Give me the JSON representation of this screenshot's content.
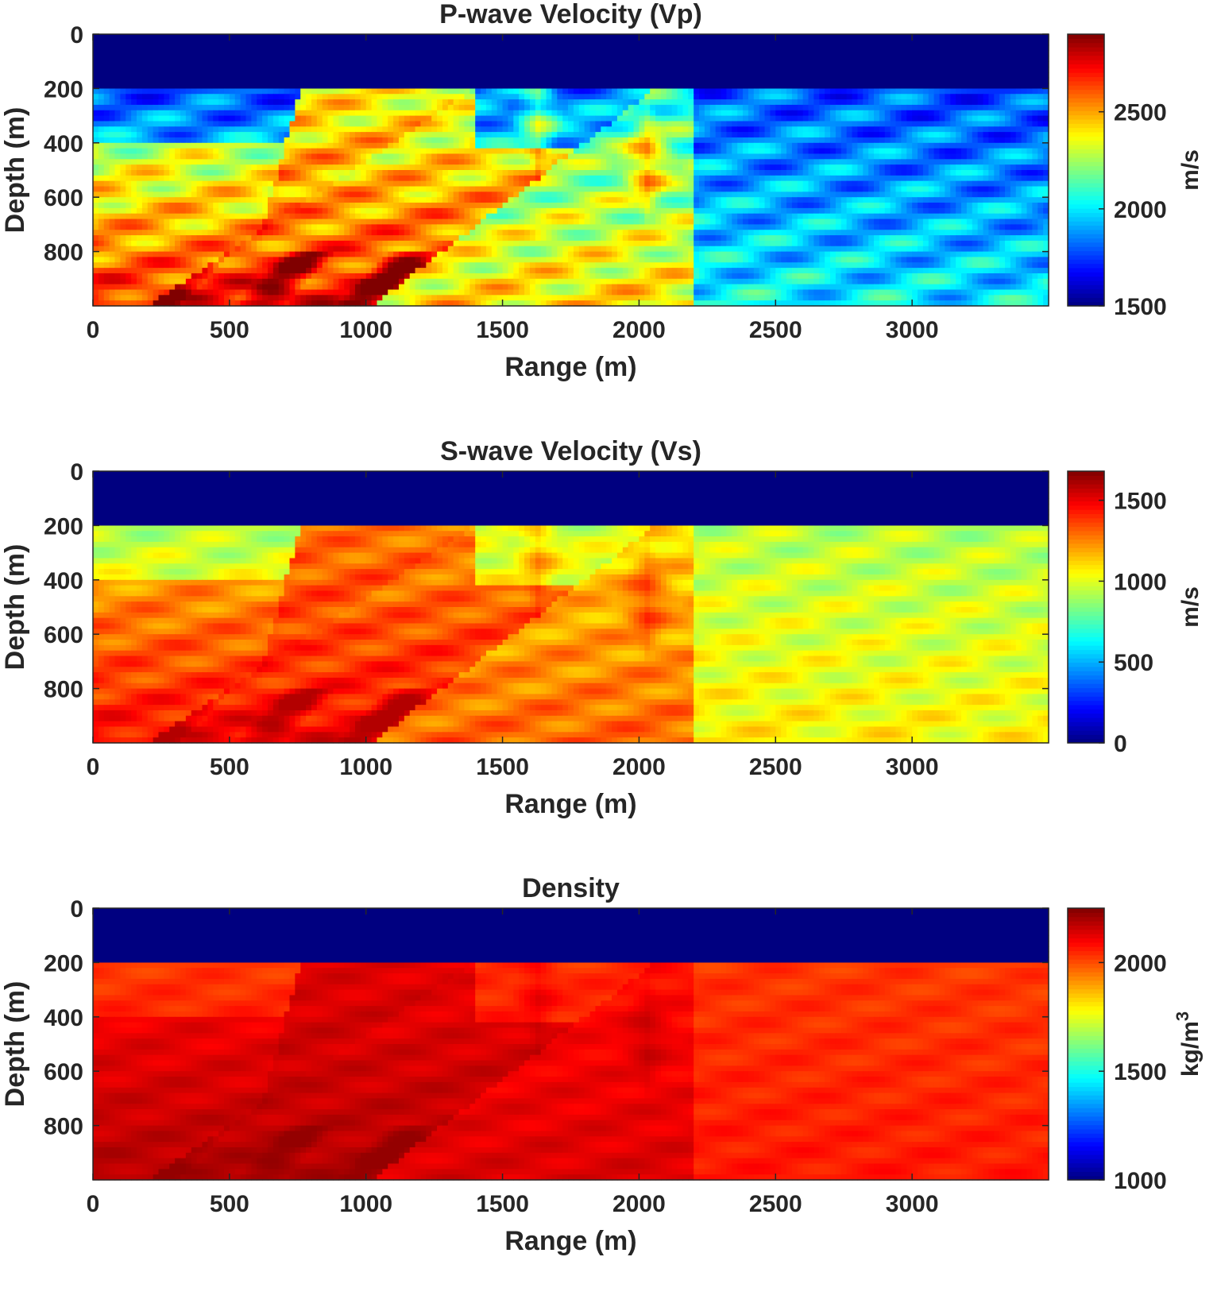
{
  "chart_data": [
    {
      "type": "heatmap",
      "title": "P-wave Velocity (Vp)",
      "xlabel": "Range (m)",
      "ylabel": "Depth (m)",
      "xlim": [
        0,
        3500
      ],
      "ylim": [
        0,
        1000
      ],
      "y_reversed": true,
      "xticks": [
        0,
        500,
        1000,
        1500,
        2000,
        2500,
        3000
      ],
      "yticks": [
        0,
        200,
        400,
        600,
        800
      ],
      "colormap": "jet",
      "colorbar": {
        "label": "m/s",
        "ticks": [
          1500,
          2000,
          2500
        ],
        "range": [
          1500,
          2900
        ]
      },
      "water_layer": {
        "depth": 200,
        "value": 1500
      },
      "field": "vp"
    },
    {
      "type": "heatmap",
      "title": "S-wave Velocity (Vs)",
      "xlabel": "Range (m)",
      "ylabel": "Depth (m)",
      "xlim": [
        0,
        3500
      ],
      "ylim": [
        0,
        1000
      ],
      "y_reversed": true,
      "xticks": [
        0,
        500,
        1000,
        1500,
        2000,
        2500,
        3000
      ],
      "yticks": [
        0,
        200,
        400,
        600,
        800
      ],
      "colormap": "jet",
      "colorbar": {
        "label": "m/s",
        "ticks": [
          0,
          500,
          1000,
          1500
        ],
        "range": [
          0,
          1680
        ]
      },
      "water_layer": {
        "depth": 200,
        "value": 0
      },
      "field": "vs"
    },
    {
      "type": "heatmap",
      "title": "Density",
      "xlabel": "Range (m)",
      "ylabel": "Depth (m)",
      "xlim": [
        0,
        3500
      ],
      "ylim": [
        0,
        1000
      ],
      "y_reversed": true,
      "xticks": [
        0,
        500,
        1000,
        1500,
        2000,
        2500,
        3000
      ],
      "yticks": [
        0,
        200,
        400,
        600,
        800
      ],
      "colormap": "jet",
      "colorbar": {
        "label": "kg/m",
        "label_sup": "3",
        "ticks": [
          1000,
          1500,
          2000
        ],
        "range": [
          1000,
          2250
        ]
      },
      "water_layer": {
        "depth": 200,
        "value": 1000
      },
      "field": "rho"
    }
  ]
}
